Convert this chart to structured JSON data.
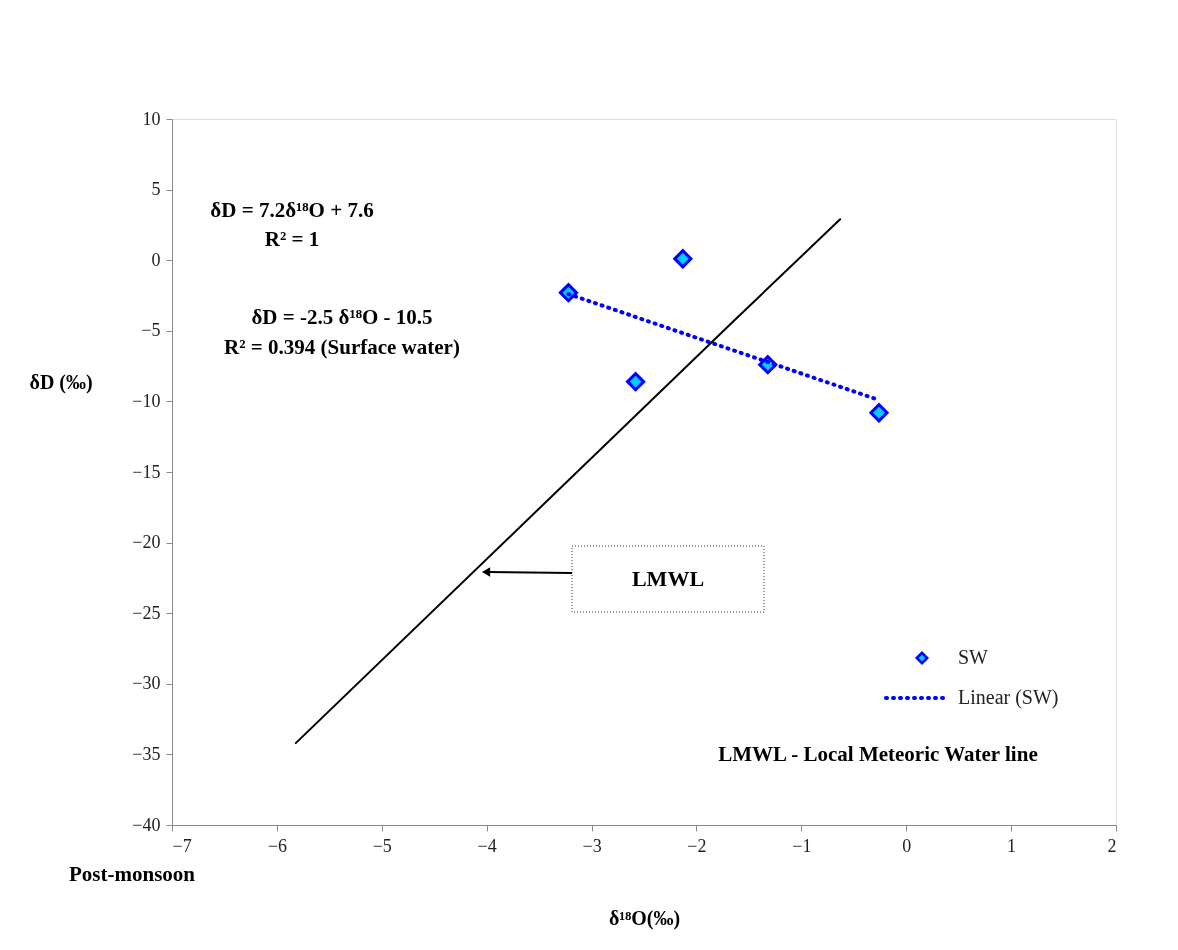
{
  "chart_data": {
    "type": "scatter",
    "xlabel": "δ¹⁸O(‰)",
    "ylabel": "δD (‰)",
    "xlim": [
      -7,
      2
    ],
    "xticks": [
      -7,
      -6,
      -5,
      -4,
      -3,
      -2,
      -1,
      0,
      1,
      2
    ],
    "ylim": [
      -40,
      10
    ],
    "yticks": [
      -40,
      -35,
      -30,
      -25,
      -20,
      -15,
      -10,
      -5,
      0,
      5,
      10
    ],
    "grid": false,
    "legend": "bottom right",
    "series": [
      {
        "name": "SW",
        "type": "scatter",
        "color": "#00ccff",
        "marker": "diamond",
        "x": [
          -3.22,
          -2.13,
          -2.58,
          -1.32,
          -0.26
        ],
        "values": [
          -2.3,
          0.1,
          -8.6,
          -7.4,
          -10.8
        ]
      },
      {
        "name": "Linear (SW)",
        "type": "line",
        "color": "#0000ff",
        "line_style": "dotted",
        "marker": "none",
        "x": [
          -3.22,
          -0.26
        ],
        "values": [
          -2.4,
          -9.9
        ]
      },
      {
        "type": "line",
        "color": "#000000",
        "line_style": "solid",
        "marker": "none",
        "x": [
          -5.82,
          -1.63,
          -0.63
        ],
        "values": [
          -34.2,
          -4.2,
          2.9
        ]
      }
    ],
    "annotations": [
      "δD = 7.2δ¹⁸O  + 7.6",
      "R² = 1",
      "δD = -2.5 δ¹⁸O  - 10.5",
      "R² = 0.394 (Surface water)",
      "LMWL",
      "LMWL - Local Meteoric Water line",
      "Post-monsoon"
    ]
  }
}
